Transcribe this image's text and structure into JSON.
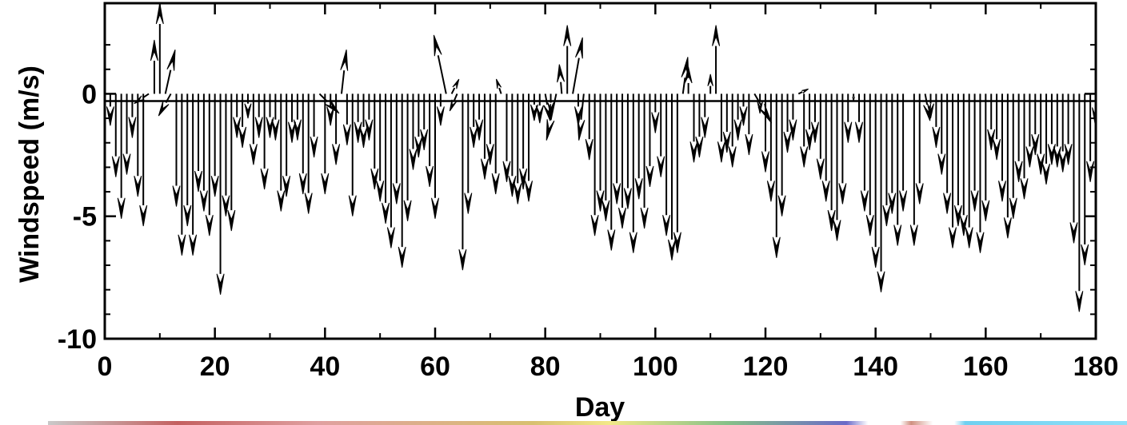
{
  "chart_data": {
    "type": "vector-stick",
    "title": "",
    "xlabel": "Day",
    "ylabel": "Windspeed (m/s)",
    "xlim": [
      0,
      180
    ],
    "ylim": [
      -10,
      3.7
    ],
    "x_ticks": [
      0,
      20,
      40,
      60,
      80,
      100,
      120,
      140,
      160,
      180
    ],
    "x_tick_labels": [
      "0",
      "20",
      "40",
      "60",
      "80",
      "100",
      "120",
      "140",
      "160",
      "180"
    ],
    "y_ticks": [
      0,
      -5,
      -10
    ],
    "y_tick_labels": [
      "0",
      "-5",
      "-10"
    ],
    "grid": false,
    "zero_line": true,
    "vectors": [
      {
        "x": 1,
        "u": 0.0,
        "v": -1.3
      },
      {
        "x": 2,
        "u": 0.0,
        "v": -3.4
      },
      {
        "x": 3,
        "u": 0.0,
        "v": -5.1
      },
      {
        "x": 4,
        "u": 0.0,
        "v": -3.3
      },
      {
        "x": 5,
        "u": 0.0,
        "v": -1.8
      },
      {
        "x": 6,
        "u": 0.0,
        "v": -4.2
      },
      {
        "x": 7,
        "u": 0.0,
        "v": -5.4
      },
      {
        "x": 8,
        "u": -0.6,
        "v": -0.4
      },
      {
        "x": 9,
        "u": 0.0,
        "v": 2.2
      },
      {
        "x": 10,
        "u": 0.0,
        "v": 3.7
      },
      {
        "x": 11,
        "u": 0.4,
        "v": 1.8
      },
      {
        "x": 12,
        "u": -0.5,
        "v": -0.9
      },
      {
        "x": 13,
        "u": 0.0,
        "v": -4.6
      },
      {
        "x": 14,
        "u": 0.0,
        "v": -6.6
      },
      {
        "x": 15,
        "u": 0.0,
        "v": -5.4
      },
      {
        "x": 16,
        "u": 0.0,
        "v": -6.6
      },
      {
        "x": 17,
        "u": 0.0,
        "v": -4.0
      },
      {
        "x": 18,
        "u": 0.0,
        "v": -4.8
      },
      {
        "x": 19,
        "u": 0.0,
        "v": -5.8
      },
      {
        "x": 20,
        "u": 0.0,
        "v": -4.2
      },
      {
        "x": 21,
        "u": 0.0,
        "v": -8.2
      },
      {
        "x": 22,
        "u": 0.0,
        "v": -5.0
      },
      {
        "x": 23,
        "u": 0.0,
        "v": -5.6
      },
      {
        "x": 24,
        "u": 0.0,
        "v": -1.8
      },
      {
        "x": 25,
        "u": 0.0,
        "v": -2.2
      },
      {
        "x": 26,
        "u": 0.0,
        "v": -1.0
      },
      {
        "x": 27,
        "u": 0.0,
        "v": -2.9
      },
      {
        "x": 28,
        "u": 0.0,
        "v": -1.8
      },
      {
        "x": 29,
        "u": 0.0,
        "v": -3.9
      },
      {
        "x": 30,
        "u": 0.0,
        "v": -1.8
      },
      {
        "x": 31,
        "u": 0.0,
        "v": -1.9
      },
      {
        "x": 32,
        "u": 0.0,
        "v": -4.8
      },
      {
        "x": 33,
        "u": 0.0,
        "v": -4.2
      },
      {
        "x": 34,
        "u": 0.0,
        "v": -2.0
      },
      {
        "x": 35,
        "u": 0.0,
        "v": -1.9
      },
      {
        "x": 36,
        "u": 0.0,
        "v": -4.1
      },
      {
        "x": 37,
        "u": 0.0,
        "v": -4.9
      },
      {
        "x": 38,
        "u": 0.0,
        "v": -2.6
      },
      {
        "x": 39,
        "u": 0.8,
        "v": -0.8
      },
      {
        "x": 40,
        "u": 0.0,
        "v": -4.1
      },
      {
        "x": 41,
        "u": 0.0,
        "v": -1.3
      },
      {
        "x": 42,
        "u": 0.0,
        "v": -2.9
      },
      {
        "x": 43,
        "u": 0.2,
        "v": 1.8
      },
      {
        "x": 44,
        "u": 0.0,
        "v": -2.1
      },
      {
        "x": 45,
        "u": 0.0,
        "v": -5.0
      },
      {
        "x": 46,
        "u": 0.0,
        "v": -2.0
      },
      {
        "x": 47,
        "u": 0.0,
        "v": -2.2
      },
      {
        "x": 48,
        "u": 0.0,
        "v": -1.9
      },
      {
        "x": 49,
        "u": 0.0,
        "v": -3.9
      },
      {
        "x": 50,
        "u": 0.0,
        "v": -4.4
      },
      {
        "x": 51,
        "u": 0.0,
        "v": -5.3
      },
      {
        "x": 52,
        "u": 0.0,
        "v": -6.3
      },
      {
        "x": 53,
        "u": 0.0,
        "v": -4.5
      },
      {
        "x": 54,
        "u": 0.0,
        "v": -7.1
      },
      {
        "x": 55,
        "u": 0.0,
        "v": -5.2
      },
      {
        "x": 56,
        "u": 0.0,
        "v": -3.1
      },
      {
        "x": 57,
        "u": 0.0,
        "v": -2.6
      },
      {
        "x": 58,
        "u": 0.0,
        "v": -2.3
      },
      {
        "x": 59,
        "u": 0.0,
        "v": -3.8
      },
      {
        "x": 60,
        "u": 0.0,
        "v": -5.1
      },
      {
        "x": 61,
        "u": 0.0,
        "v": -1.3
      },
      {
        "x": 62,
        "u": -0.5,
        "v": 2.4
      },
      {
        "x": 63,
        "u": 0.3,
        "v": 0.6
      },
      {
        "x": 64,
        "u": -0.3,
        "v": -0.7
      },
      {
        "x": 65,
        "u": 0.0,
        "v": -7.2
      },
      {
        "x": 66,
        "u": 0.0,
        "v": -4.9
      },
      {
        "x": 67,
        "u": 0.0,
        "v": -2.2
      },
      {
        "x": 68,
        "u": 0.0,
        "v": -1.9
      },
      {
        "x": 69,
        "u": 0.0,
        "v": -3.5
      },
      {
        "x": 70,
        "u": 0.0,
        "v": -2.9
      },
      {
        "x": 71,
        "u": 0.0,
        "v": -4.1
      },
      {
        "x": 72,
        "u": -0.2,
        "v": 0.6
      },
      {
        "x": 73,
        "u": 0.0,
        "v": -3.6
      },
      {
        "x": 74,
        "u": 0.0,
        "v": -4.2
      },
      {
        "x": 75,
        "u": 0.0,
        "v": -4.5
      },
      {
        "x": 76,
        "u": 0.0,
        "v": -3.9
      },
      {
        "x": 77,
        "u": 0.0,
        "v": -4.4
      },
      {
        "x": 78,
        "u": 0.0,
        "v": -1.1
      },
      {
        "x": 79,
        "u": 0.0,
        "v": -1.2
      },
      {
        "x": 80,
        "u": 0.2,
        "v": -1.1
      },
      {
        "x": 81,
        "u": 0.0,
        "v": -0.9
      },
      {
        "x": 82,
        "u": -0.4,
        "v": -1.9
      },
      {
        "x": 83,
        "u": -0.1,
        "v": 1.2
      },
      {
        "x": 84,
        "u": 0.0,
        "v": 2.8
      },
      {
        "x": 85,
        "u": 0.4,
        "v": 2.3
      },
      {
        "x": 86,
        "u": 0.0,
        "v": -1.3
      },
      {
        "x": 87,
        "u": -0.2,
        "v": -1.9
      },
      {
        "x": 88,
        "u": 0.0,
        "v": -2.7
      },
      {
        "x": 89,
        "u": 0.0,
        "v": -5.8
      },
      {
        "x": 90,
        "u": 0.0,
        "v": -4.8
      },
      {
        "x": 91,
        "u": 0.0,
        "v": -5.2
      },
      {
        "x": 92,
        "u": 0.0,
        "v": -6.4
      },
      {
        "x": 93,
        "u": 0.0,
        "v": -4.5
      },
      {
        "x": 94,
        "u": 0.0,
        "v": -5.5
      },
      {
        "x": 95,
        "u": 0.0,
        "v": -4.7
      },
      {
        "x": 96,
        "u": 0.0,
        "v": -6.5
      },
      {
        "x": 97,
        "u": 0.0,
        "v": -4.3
      },
      {
        "x": 98,
        "u": 0.0,
        "v": -5.5
      },
      {
        "x": 99,
        "u": 0.0,
        "v": -3.8
      },
      {
        "x": 100,
        "u": 0.0,
        "v": -1.6
      },
      {
        "x": 101,
        "u": 0.0,
        "v": -3.4
      },
      {
        "x": 102,
        "u": 0.0,
        "v": -5.8
      },
      {
        "x": 103,
        "u": 0.0,
        "v": -6.8
      },
      {
        "x": 104,
        "u": 0.0,
        "v": -6.5
      },
      {
        "x": 105,
        "u": 0.2,
        "v": 1.5
      },
      {
        "x": 106,
        "u": 0.0,
        "v": 1.1
      },
      {
        "x": 107,
        "u": 0.0,
        "v": -2.8
      },
      {
        "x": 108,
        "u": 0.0,
        "v": -2.6
      },
      {
        "x": 109,
        "u": 0.0,
        "v": -1.8
      },
      {
        "x": 110,
        "u": 0.0,
        "v": 0.8
      },
      {
        "x": 111,
        "u": 0.0,
        "v": 2.8
      },
      {
        "x": 112,
        "u": 0.0,
        "v": -2.8
      },
      {
        "x": 113,
        "u": 0.0,
        "v": -2.4
      },
      {
        "x": 114,
        "u": 0.0,
        "v": -3.0
      },
      {
        "x": 115,
        "u": 0.0,
        "v": -1.9
      },
      {
        "x": 116,
        "u": 0.0,
        "v": -1.3
      },
      {
        "x": 117,
        "u": 0.0,
        "v": -2.5
      },
      {
        "x": 118,
        "u": 0.7,
        "v": -1.2
      },
      {
        "x": 119,
        "u": 0.0,
        "v": -0.8
      },
      {
        "x": 120,
        "u": 0.0,
        "v": -3.2
      },
      {
        "x": 121,
        "u": 0.0,
        "v": -4.4
      },
      {
        "x": 122,
        "u": 0.0,
        "v": -6.7
      },
      {
        "x": 123,
        "u": 0.0,
        "v": -5.0
      },
      {
        "x": 124,
        "u": 0.0,
        "v": -2.4
      },
      {
        "x": 125,
        "u": 0.0,
        "v": -1.9
      },
      {
        "x": 126,
        "u": 0.4,
        "v": 0.2
      },
      {
        "x": 127,
        "u": 0.0,
        "v": -3.0
      },
      {
        "x": 128,
        "u": 0.0,
        "v": -2.3
      },
      {
        "x": 129,
        "u": 0.0,
        "v": -2.0
      },
      {
        "x": 130,
        "u": 0.0,
        "v": -3.5
      },
      {
        "x": 131,
        "u": 0.0,
        "v": -4.4
      },
      {
        "x": 132,
        "u": 0.0,
        "v": -5.6
      },
      {
        "x": 133,
        "u": 0.0,
        "v": -6.0
      },
      {
        "x": 134,
        "u": 0.0,
        "v": -4.5
      },
      {
        "x": 135,
        "u": 0.0,
        "v": -2.0
      },
      {
        "x": 136,
        "u": 0.0,
        "v": -0.3
      },
      {
        "x": 137,
        "u": 0.0,
        "v": -2.0
      },
      {
        "x": 138,
        "u": 0.0,
        "v": -4.8
      },
      {
        "x": 139,
        "u": 0.0,
        "v": -5.8
      },
      {
        "x": 140,
        "u": 0.0,
        "v": -7.1
      },
      {
        "x": 141,
        "u": 0.0,
        "v": -8.1
      },
      {
        "x": 142,
        "u": 0.0,
        "v": -5.4
      },
      {
        "x": 143,
        "u": 0.0,
        "v": -4.9
      },
      {
        "x": 144,
        "u": 0.0,
        "v": -6.2
      },
      {
        "x": 145,
        "u": 0.0,
        "v": -4.8
      },
      {
        "x": 146,
        "u": 0.0,
        "v": 0.0
      },
      {
        "x": 147,
        "u": 0.0,
        "v": -6.2
      },
      {
        "x": 148,
        "u": 0.0,
        "v": -4.5
      },
      {
        "x": 149,
        "u": 0.2,
        "v": -1.1
      },
      {
        "x": 150,
        "u": 0.0,
        "v": -1.0
      },
      {
        "x": 151,
        "u": 0.0,
        "v": -2.2
      },
      {
        "x": 152,
        "u": 0.0,
        "v": -3.3
      },
      {
        "x": 153,
        "u": 0.0,
        "v": -4.9
      },
      {
        "x": 154,
        "u": 0.0,
        "v": -6.3
      },
      {
        "x": 155,
        "u": 0.0,
        "v": -5.4
      },
      {
        "x": 156,
        "u": 0.0,
        "v": -5.8
      },
      {
        "x": 157,
        "u": 0.0,
        "v": -6.3
      },
      {
        "x": 158,
        "u": 0.0,
        "v": -4.8
      },
      {
        "x": 159,
        "u": 0.0,
        "v": -6.5
      },
      {
        "x": 160,
        "u": 0.0,
        "v": -5.2
      },
      {
        "x": 161,
        "u": 0.0,
        "v": -2.3
      },
      {
        "x": 162,
        "u": 0.0,
        "v": -2.7
      },
      {
        "x": 163,
        "u": 0.0,
        "v": -4.4
      },
      {
        "x": 164,
        "u": 0.0,
        "v": -5.9
      },
      {
        "x": 165,
        "u": 0.0,
        "v": -5.1
      },
      {
        "x": 166,
        "u": 0.0,
        "v": -3.6
      },
      {
        "x": 167,
        "u": 0.0,
        "v": -4.3
      },
      {
        "x": 168,
        "u": 0.0,
        "v": -3.0
      },
      {
        "x": 169,
        "u": 0.0,
        "v": -2.5
      },
      {
        "x": 170,
        "u": 0.0,
        "v": -3.3
      },
      {
        "x": 171,
        "u": 0.0,
        "v": -3.7
      },
      {
        "x": 172,
        "u": 0.0,
        "v": -2.9
      },
      {
        "x": 173,
        "u": 0.0,
        "v": -3.0
      },
      {
        "x": 174,
        "u": 0.0,
        "v": -3.2
      },
      {
        "x": 175,
        "u": 0.0,
        "v": -2.9
      },
      {
        "x": 176,
        "u": 0.0,
        "v": -6.1
      },
      {
        "x": 177,
        "u": 0.0,
        "v": -8.9
      },
      {
        "x": 178,
        "u": 0.0,
        "v": -7.0
      },
      {
        "x": 179,
        "u": 0.0,
        "v": -3.6
      },
      {
        "x": 180,
        "u": 0.0,
        "v": -1.4
      }
    ]
  }
}
